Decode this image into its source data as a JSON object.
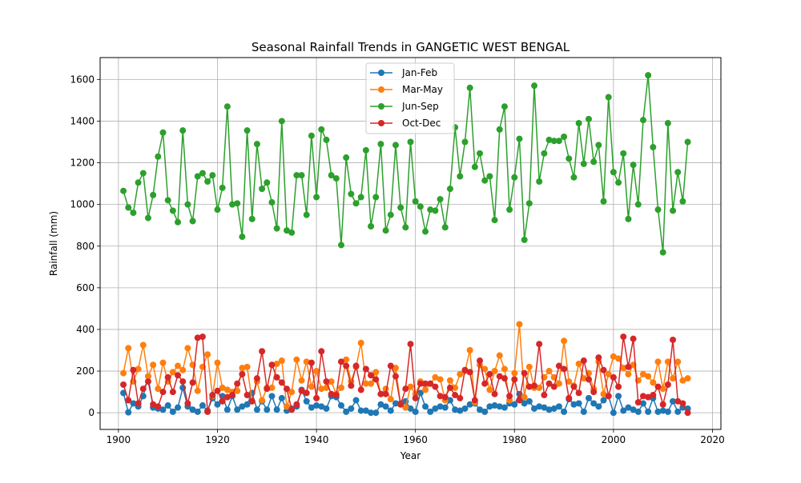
{
  "chart_data": {
    "type": "line",
    "title": "Seasonal Rainfall Trends in GANGETIC WEST BENGAL",
    "xlabel": "Year",
    "ylabel": "Rainfall (mm)",
    "xlim": [
      1896.3,
      2021.7
    ],
    "ylim": [
      -80,
      1705
    ],
    "x_ticks": [
      1900,
      1920,
      1940,
      1960,
      1980,
      2000,
      2020
    ],
    "y_ticks": [
      0,
      200,
      400,
      600,
      800,
      1000,
      1200,
      1400,
      1600
    ],
    "grid": true,
    "legend_position": "upper-center",
    "x": [
      1901,
      1902,
      1903,
      1904,
      1905,
      1906,
      1907,
      1908,
      1909,
      1910,
      1911,
      1912,
      1913,
      1914,
      1915,
      1916,
      1917,
      1918,
      1919,
      1920,
      1921,
      1922,
      1923,
      1924,
      1925,
      1926,
      1927,
      1928,
      1929,
      1930,
      1931,
      1932,
      1933,
      1934,
      1935,
      1936,
      1937,
      1938,
      1939,
      1940,
      1941,
      1942,
      1943,
      1944,
      1945,
      1946,
      1947,
      1948,
      1949,
      1950,
      1951,
      1952,
      1953,
      1954,
      1955,
      1956,
      1957,
      1958,
      1959,
      1960,
      1961,
      1962,
      1963,
      1964,
      1965,
      1966,
      1967,
      1968,
      1969,
      1970,
      1971,
      1972,
      1973,
      1974,
      1975,
      1976,
      1977,
      1978,
      1979,
      1980,
      1981,
      1982,
      1983,
      1984,
      1985,
      1986,
      1987,
      1988,
      1989,
      1990,
      1991,
      1992,
      1993,
      1994,
      1995,
      1996,
      1997,
      1998,
      1999,
      2000,
      2001,
      2002,
      2003,
      2004,
      2005,
      2006,
      2007,
      2008,
      2009,
      2010,
      2011,
      2012,
      2013,
      2014,
      2015
    ],
    "series": [
      {
        "name": "Jan-Feb",
        "color": "#1f77b4",
        "values": [
          95,
          2,
          45,
          30,
          80,
          175,
          25,
          20,
          15,
          35,
          5,
          25,
          120,
          30,
          15,
          5,
          35,
          10,
          70,
          40,
          80,
          15,
          80,
          15,
          30,
          40,
          95,
          15,
          55,
          15,
          80,
          15,
          70,
          10,
          20,
          30,
          110,
          55,
          25,
          35,
          30,
          20,
          80,
          75,
          35,
          5,
          20,
          60,
          10,
          10,
          0,
          0,
          40,
          30,
          10,
          45,
          45,
          55,
          20,
          5,
          95,
          30,
          5,
          20,
          30,
          25,
          60,
          15,
          10,
          20,
          40,
          45,
          15,
          5,
          30,
          35,
          30,
          25,
          45,
          40,
          90,
          45,
          55,
          20,
          30,
          25,
          15,
          20,
          30,
          5,
          65,
          40,
          45,
          5,
          70,
          45,
          30,
          60,
          80,
          0,
          80,
          10,
          25,
          15,
          5,
          45,
          5,
          70,
          5,
          10,
          5,
          55,
          5,
          25,
          20
        ]
      },
      {
        "name": "Mar-May",
        "color": "#ff7f0e",
        "values": [
          190,
          310,
          150,
          210,
          325,
          175,
          230,
          115,
          240,
          150,
          195,
          225,
          205,
          310,
          230,
          105,
          220,
          280,
          80,
          240,
          120,
          110,
          100,
          105,
          215,
          220,
          55,
          150,
          60,
          120,
          120,
          235,
          250,
          30,
          100,
          255,
          155,
          245,
          125,
          200,
          115,
          120,
          150,
          90,
          120,
          255,
          150,
          220,
          335,
          140,
          140,
          195,
          90,
          115,
          65,
          215,
          40,
          25,
          125,
          90,
          150,
          110,
          140,
          170,
          160,
          60,
          155,
          120,
          185,
          200,
          300,
          50,
          230,
          210,
          110,
          200,
          275,
          210,
          60,
          190,
          425,
          75,
          220,
          120,
          120,
          170,
          200,
          170,
          140,
          345,
          150,
          130,
          235,
          165,
          190,
          115,
          245,
          90,
          185,
          270,
          260,
          215,
          185,
          230,
          155,
          185,
          175,
          145,
          245,
          115,
          245,
          165,
          245,
          155,
          165
        ]
      },
      {
        "name": "Jun-Sep",
        "color": "#2ca02c",
        "values": [
          1065,
          985,
          960,
          1105,
          1150,
          935,
          1045,
          1230,
          1345,
          1020,
          970,
          915,
          1355,
          1000,
          920,
          1135,
          1150,
          1110,
          1140,
          975,
          1080,
          1470,
          1000,
          1005,
          845,
          1355,
          930,
          1290,
          1075,
          1105,
          1010,
          885,
          1400,
          875,
          865,
          1140,
          1140,
          950,
          1330,
          1035,
          1360,
          1310,
          1140,
          1125,
          805,
          1225,
          1050,
          1005,
          1035,
          1260,
          895,
          1035,
          1290,
          875,
          950,
          1285,
          985,
          890,
          1300,
          1015,
          990,
          870,
          975,
          970,
          1025,
          890,
          1075,
          1370,
          1135,
          1300,
          1560,
          1180,
          1245,
          1115,
          1135,
          925,
          1360,
          1470,
          975,
          1130,
          1315,
          830,
          1005,
          1570,
          1110,
          1245,
          1310,
          1305,
          1305,
          1325,
          1220,
          1130,
          1390,
          1195,
          1410,
          1205,
          1285,
          1015,
          1515,
          1155,
          1105,
          1245,
          930,
          1190,
          1000,
          1405,
          1620,
          1275,
          975,
          770,
          1390,
          970,
          1155,
          1015,
          1300
        ]
      },
      {
        "name": "Oct-Dec",
        "color": "#d62728",
        "values": [
          135,
          60,
          205,
          45,
          115,
          150,
          40,
          30,
          100,
          170,
          100,
          180,
          150,
          45,
          145,
          360,
          365,
          5,
          85,
          105,
          55,
          75,
          85,
          140,
          185,
          85,
          55,
          165,
          295,
          115,
          230,
          170,
          145,
          115,
          15,
          40,
          105,
          95,
          240,
          70,
          295,
          150,
          90,
          85,
          245,
          225,
          130,
          225,
          110,
          210,
          180,
          160,
          90,
          90,
          225,
          175,
          40,
          115,
          330,
          70,
          140,
          140,
          140,
          125,
          80,
          75,
          120,
          85,
          70,
          205,
          195,
          60,
          250,
          140,
          185,
          90,
          175,
          165,
          80,
          160,
          60,
          190,
          125,
          130,
          330,
          85,
          140,
          125,
          225,
          210,
          70,
          125,
          95,
          250,
          160,
          100,
          265,
          205,
          80,
          170,
          125,
          365,
          220,
          355,
          50,
          80,
          75,
          85,
          125,
          40,
          135,
          350,
          55,
          45,
          0
        ]
      }
    ]
  }
}
